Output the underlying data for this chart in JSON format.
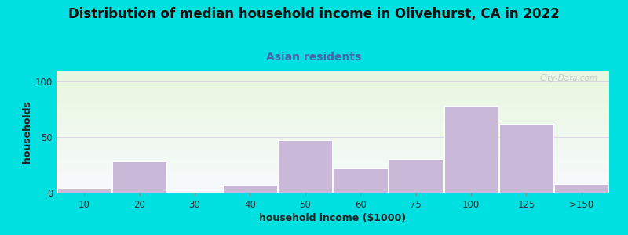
{
  "title": "Distribution of median household income in Olivehurst, CA in 2022",
  "subtitle": "Asian residents",
  "xlabel": "household income ($1000)",
  "ylabel": "households",
  "categories": [
    "10",
    "20",
    "30",
    "40",
    "50",
    "60",
    "75",
    "100",
    "125",
    ">150"
  ],
  "values": [
    4,
    28,
    0,
    7,
    47,
    22,
    30,
    78,
    62,
    8
  ],
  "bar_color": "#c9b8d8",
  "bar_edgecolor": "#ffffff",
  "ylim": [
    0,
    110
  ],
  "yticks": [
    0,
    50,
    100
  ],
  "background_outer": "#00e0e0",
  "grid_color": "#ddd5e8",
  "title_fontsize": 12,
  "subtitle_fontsize": 10,
  "axis_label_fontsize": 9,
  "tick_fontsize": 8.5,
  "watermark_text": "City-Data.com"
}
